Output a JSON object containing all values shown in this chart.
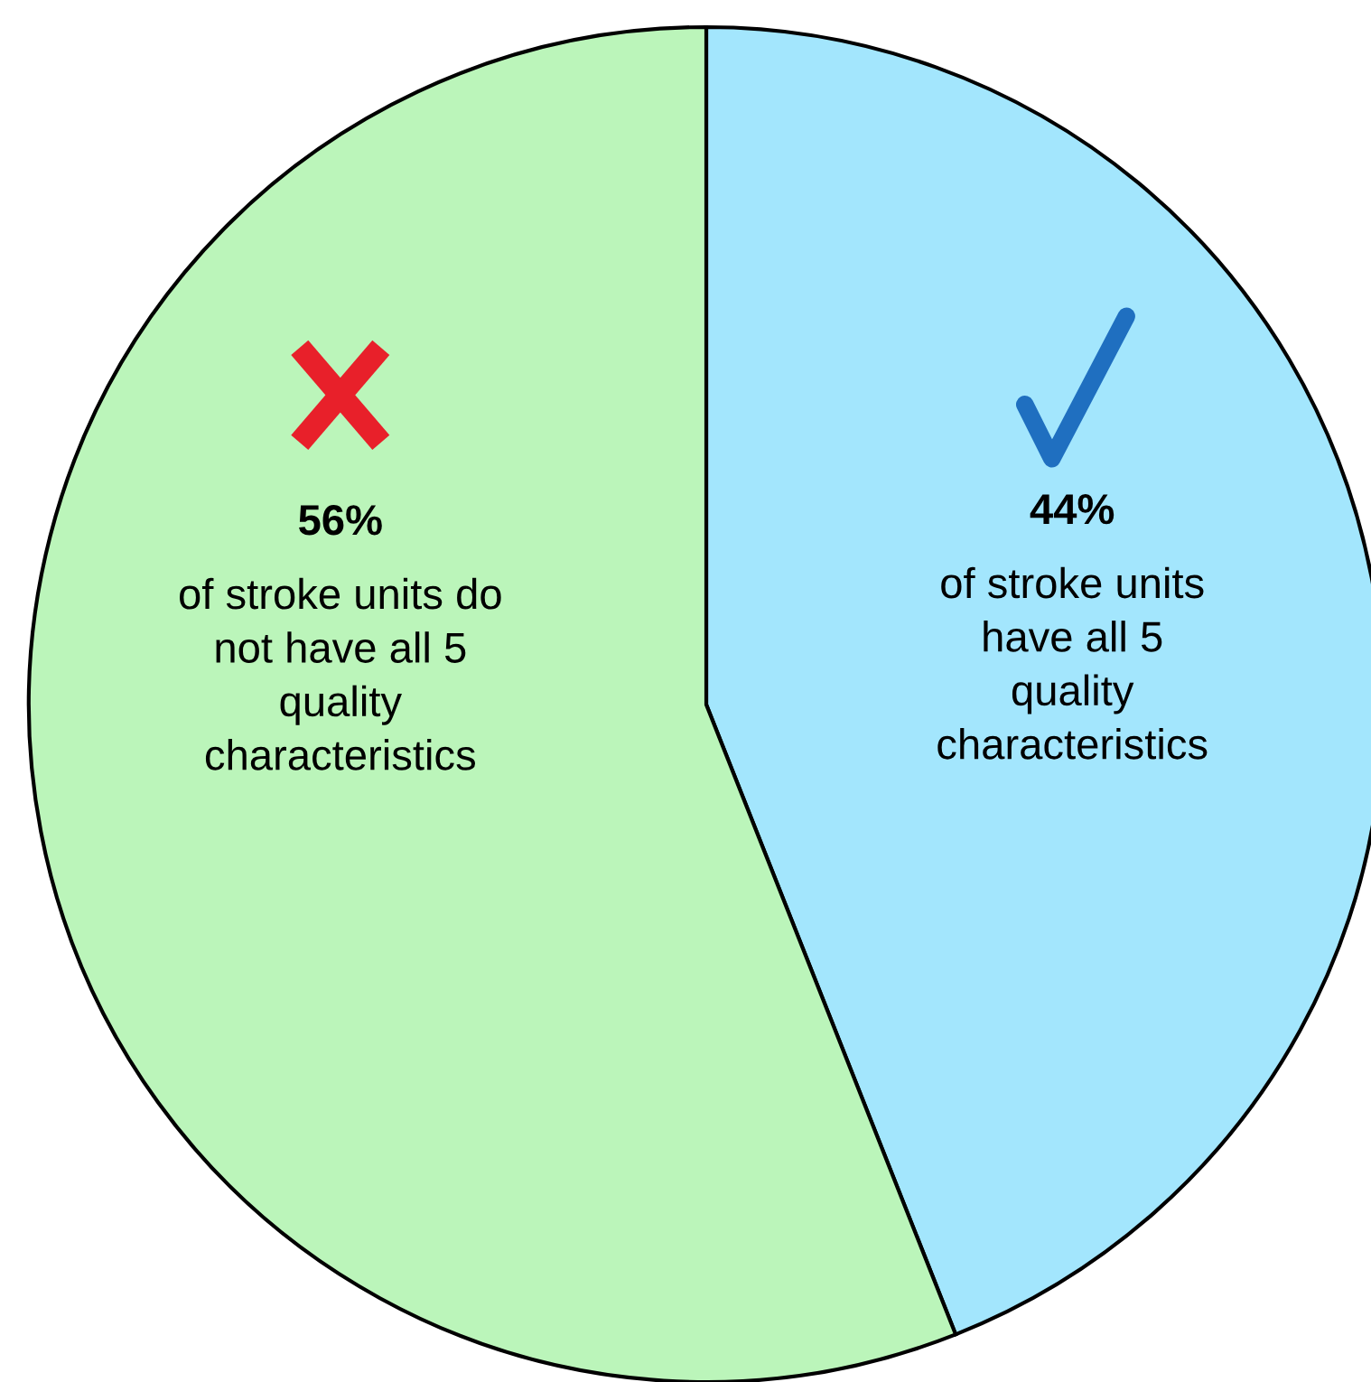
{
  "chart_data": {
    "type": "pie",
    "categories": [
      "of stroke units\nhave all 5\nquality\ncharacteristics",
      "of stroke units do\nnot have all 5\nquality\ncharacteristics"
    ],
    "values": [
      44,
      56
    ],
    "colors": [
      "#a3e6fd",
      "#bbf5ba"
    ],
    "value_labels": [
      "44%",
      "56%"
    ]
  }
}
